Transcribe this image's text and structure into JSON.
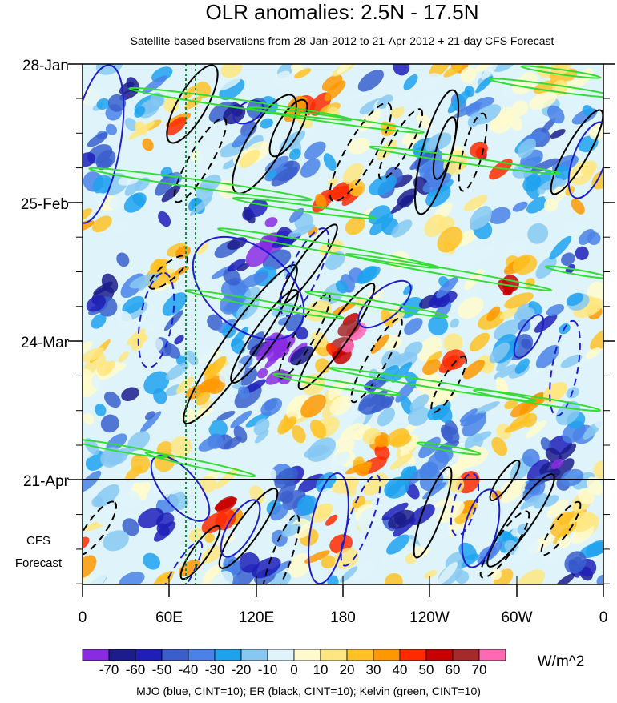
{
  "chart_data": {
    "type": "heatmap",
    "title": "OLR anomalies: 2.5N - 17.5N",
    "subtitle": "Satellite-based bservations from 28-Jan-2012 to 21-Apr-2012 + 21-day CFS Forecast",
    "x_ticks": [
      "0",
      "60E",
      "120E",
      "180",
      "120W",
      "60W",
      "0"
    ],
    "y_ticks": [
      "28-Jan",
      "25-Feb",
      "24-Mar",
      "21-Apr"
    ],
    "forecast_label": [
      "CFS",
      "Forecast"
    ],
    "colorbar": {
      "unit": "W/m^2",
      "labels": [
        "-70",
        "-60",
        "-50",
        "-40",
        "-30",
        "-20",
        "-10",
        "0",
        "10",
        "20",
        "30",
        "40",
        "50",
        "60",
        "70"
      ],
      "colors": [
        "#8a2be2",
        "#1c1c8c",
        "#1f1fb8",
        "#3a5fcd",
        "#4a82e8",
        "#1ea2ee",
        "#87c8f2",
        "#dff4fa",
        "#fffacd",
        "#ffe680",
        "#ffc125",
        "#ff9800",
        "#ff2a00",
        "#c80000",
        "#a52a2a",
        "#ff69b4"
      ]
    },
    "footer": "MJO (blue, CINT=10); ER (black, CINT=10); Kelvin (green, CINT=10)",
    "line_colors": {
      "mjo": "#1e1ecc",
      "er": "#000000",
      "kelvin": "#33dd33"
    }
  }
}
